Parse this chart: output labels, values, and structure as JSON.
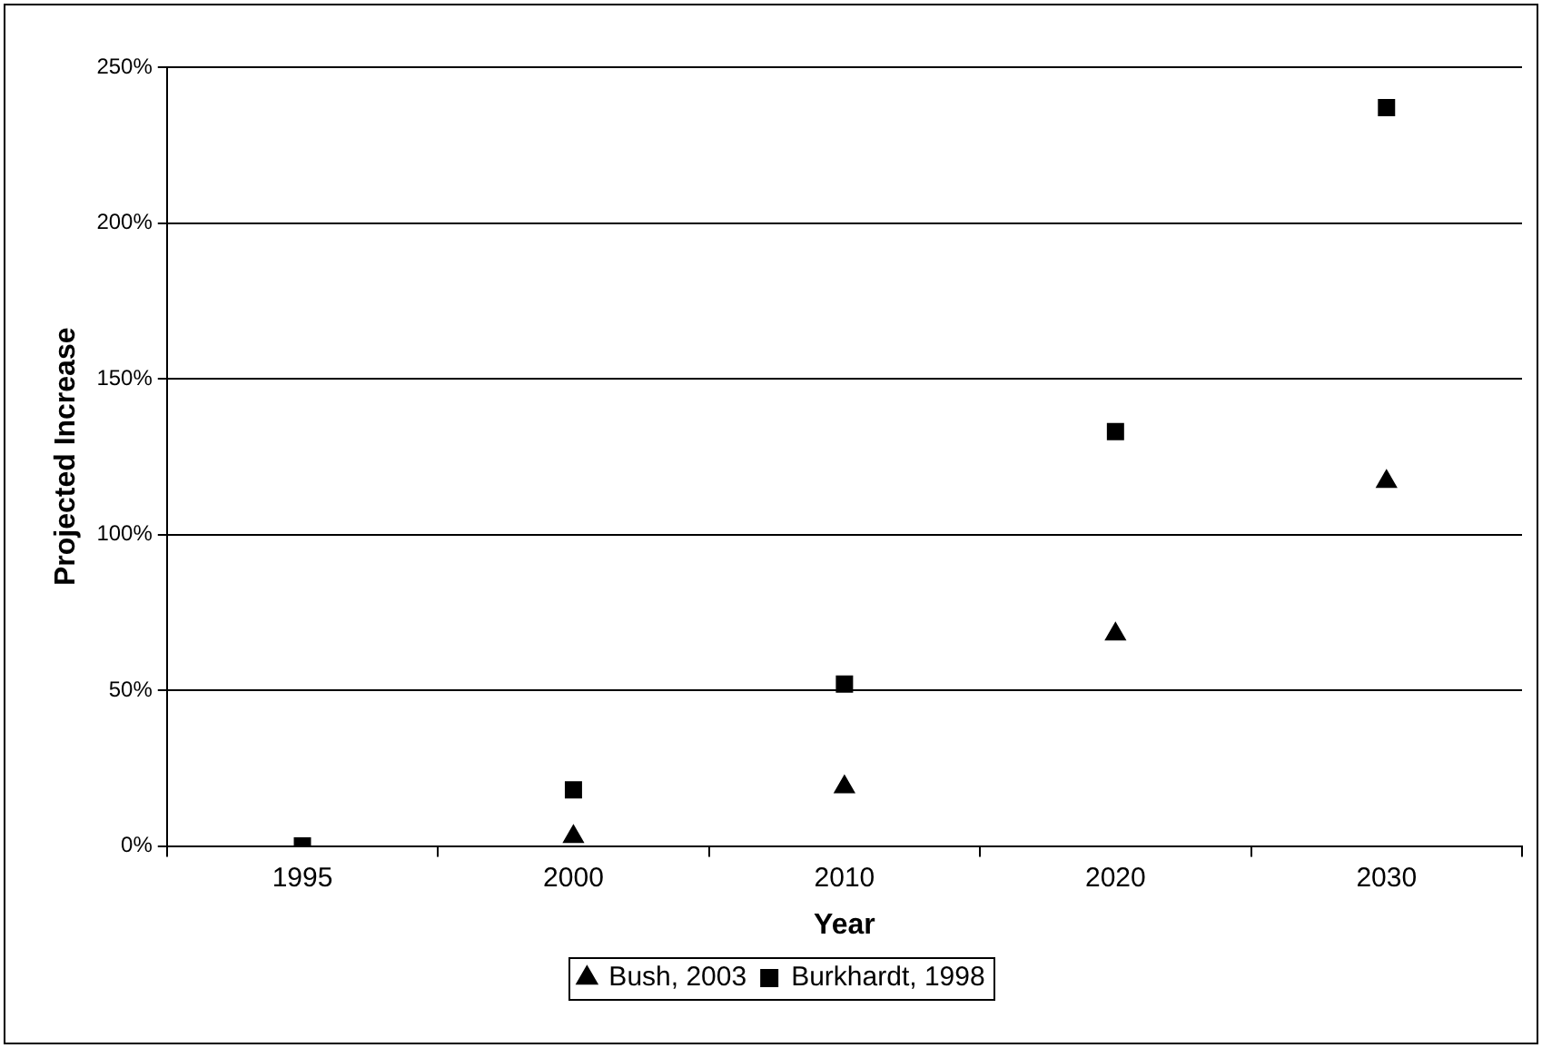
{
  "chart_data": {
    "type": "scatter",
    "xlabel": "Year",
    "ylabel": "Projected Increase",
    "categories": [
      "1995",
      "2000",
      "2010",
      "2020",
      "2030"
    ],
    "series": [
      {
        "name": "Bush, 2003",
        "color": "#000000",
        "marker": "triangle",
        "values": [
          null,
          3,
          19,
          68,
          117
        ]
      },
      {
        "name": "Burkhardt, 1998",
        "color": "#000000",
        "marker": "square",
        "values": [
          0,
          18,
          52,
          133,
          237
        ]
      }
    ],
    "ylim": [
      0,
      250
    ],
    "yticks": [
      {
        "value": 0,
        "label": "0%"
      },
      {
        "value": 50,
        "label": "50%"
      },
      {
        "value": 100,
        "label": "100%"
      },
      {
        "value": 150,
        "label": "150%"
      },
      {
        "value": 200,
        "label": "200%"
      },
      {
        "value": 250,
        "label": "250%"
      }
    ],
    "grid": "y",
    "legend": "bottom"
  }
}
